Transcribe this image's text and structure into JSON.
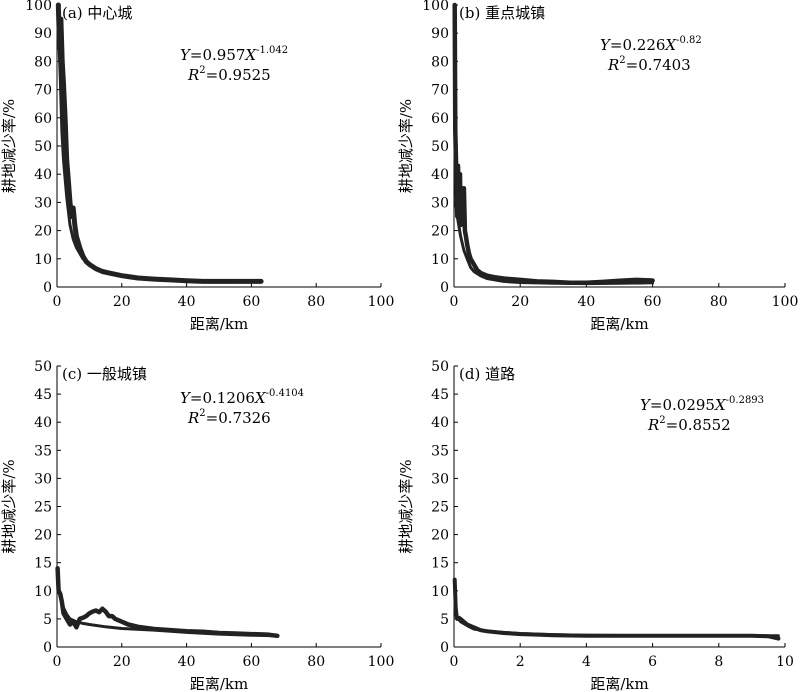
{
  "chart_data": [
    {
      "type": "line",
      "title": "(a) 中心城",
      "xlabel": "距离/km",
      "ylabel": "耕地减少率/%",
      "xlim": [
        0,
        100
      ],
      "ylim": [
        0,
        100
      ],
      "xticks": [
        "0",
        "20",
        "40",
        "60",
        "80",
        "100"
      ],
      "yticks": [
        "0",
        "10",
        "20",
        "30",
        "40",
        "50",
        "60",
        "70",
        "80",
        "90",
        "100"
      ],
      "equation": {
        "main": "Y=0.957X",
        "exp": "-1.042",
        "r2": "=0.9525"
      },
      "series": [
        {
          "x": [
            0.4,
            0.8,
            1.2,
            1.6,
            2,
            2.5,
            3,
            3.5,
            4,
            4.5,
            5,
            5.5,
            6,
            7,
            8,
            9,
            10,
            12,
            14,
            16,
            18,
            20,
            25,
            30,
            35,
            40,
            45,
            50,
            55,
            60,
            63
          ],
          "y": [
            100,
            85,
            95,
            80,
            72,
            60,
            45,
            38,
            30,
            25,
            28,
            22,
            18,
            14,
            11,
            9,
            8,
            6.5,
            5.5,
            5,
            4.5,
            4,
            3.2,
            2.8,
            2.5,
            2.2,
            2,
            2,
            2,
            2,
            2
          ]
        },
        {
          "x": [
            0.5,
            1,
            1.5,
            2,
            3,
            4,
            5,
            6,
            8,
            10,
            12,
            15,
            20,
            25,
            30,
            40,
            50,
            60,
            63
          ],
          "y": [
            90,
            75,
            55,
            45,
            32,
            22,
            17,
            14,
            10,
            8,
            6.5,
            5,
            3.8,
            3,
            2.6,
            2.2,
            2,
            1.9,
            1.9
          ]
        }
      ]
    },
    {
      "type": "line",
      "title": "(b) 重点城镇",
      "xlabel": "距离/km",
      "ylabel": "耕地减少率/%",
      "xlim": [
        0,
        100
      ],
      "ylim": [
        0,
        100
      ],
      "xticks": [
        "0",
        "20",
        "40",
        "60",
        "80",
        "100"
      ],
      "yticks": [
        "0",
        "10",
        "20",
        "30",
        "40",
        "50",
        "60",
        "70",
        "80",
        "90",
        "100"
      ],
      "equation": {
        "main": "Y=0.226X",
        "exp": "-0.82",
        "r2": "=0.7403"
      },
      "series": [
        {
          "x": [
            0.2,
            0.4,
            0.6,
            0.8,
            1,
            1.2,
            1.5,
            1.8,
            2,
            2.3,
            2.6,
            3,
            3.3,
            3.6,
            4,
            4.5,
            5,
            6,
            7,
            8,
            10,
            12,
            15,
            20,
            25,
            30,
            35,
            40,
            45,
            50,
            55,
            60
          ],
          "y": [
            100,
            55,
            45,
            35,
            25,
            43,
            30,
            40,
            22,
            35,
            28,
            35,
            20,
            18,
            15,
            12,
            10,
            8,
            6,
            5,
            4,
            3.5,
            3,
            2.5,
            2,
            1.8,
            1.5,
            1.5,
            1.8,
            2.2,
            2.5,
            2.3
          ]
        },
        {
          "x": [
            0.5,
            1,
            2,
            3,
            4,
            5,
            6,
            8,
            10,
            15,
            20,
            30,
            40,
            50,
            60
          ],
          "y": [
            30,
            25,
            18,
            13,
            10,
            7,
            5.5,
            4,
            3,
            2,
            1.6,
            1.3,
            1.2,
            1.3,
            1.5
          ]
        }
      ]
    },
    {
      "type": "line",
      "title": "(c) 一般城镇",
      "xlabel": "距离/km",
      "ylabel": "耕地减少率/%",
      "xlim": [
        0,
        100
      ],
      "ylim": [
        0,
        50
      ],
      "xticks": [
        "0",
        "20",
        "40",
        "60",
        "80",
        "100"
      ],
      "yticks": [
        "0",
        "5",
        "10",
        "15",
        "20",
        "25",
        "30",
        "35",
        "40",
        "45",
        "50"
      ],
      "equation": {
        "main": "Y=0.1206X",
        "exp": "-0.4104",
        "r2": "=0.7326"
      },
      "series": [
        {
          "x": [
            0.2,
            0.5,
            1,
            1.5,
            2,
            3,
            4,
            5,
            6,
            7,
            8,
            9,
            10,
            11,
            12,
            13,
            14,
            15,
            16,
            17,
            18,
            20,
            22,
            25,
            30,
            35,
            40,
            45,
            50,
            55,
            60,
            65,
            68
          ],
          "y": [
            14,
            10,
            9.5,
            8,
            6,
            5,
            4,
            4.5,
            3.5,
            5,
            5.2,
            5.5,
            6,
            6.3,
            6.5,
            6.2,
            6.8,
            6.3,
            5.5,
            5.5,
            5,
            4.5,
            4,
            3.6,
            3.2,
            3,
            2.8,
            2.7,
            2.5,
            2.4,
            2.3,
            2.2,
            2
          ]
        },
        {
          "x": [
            0.5,
            1,
            2,
            3,
            4,
            6,
            8,
            10,
            15,
            20,
            30,
            40,
            50,
            60,
            68
          ],
          "y": [
            10,
            9,
            7,
            5.8,
            5,
            4.5,
            4.2,
            4,
            3.6,
            3.3,
            3,
            2.6,
            2.3,
            2.1,
            2
          ]
        }
      ]
    },
    {
      "type": "line",
      "title": "(d) 道路",
      "xlabel": "距离/km",
      "ylabel": "耕地减少率/%",
      "xlim": [
        0,
        10
      ],
      "ylim": [
        0,
        50
      ],
      "xticks": [
        "0",
        "2",
        "4",
        "6",
        "8",
        "10"
      ],
      "yticks": [
        "0",
        "5",
        "10",
        "15",
        "20",
        "25",
        "30",
        "35",
        "40",
        "45",
        "50"
      ],
      "equation": {
        "main": "Y=0.0295X",
        "exp": "-0.2893",
        "r2": "=0.8552"
      },
      "series": [
        {
          "x": [
            0.02,
            0.05,
            0.08,
            0.1,
            0.15,
            0.2,
            0.3,
            0.4,
            0.6,
            0.8,
            1,
            1.5,
            2,
            2.5,
            3,
            4,
            5,
            6,
            7,
            8,
            9,
            9.5,
            9.8
          ],
          "y": [
            12,
            7,
            5.5,
            5,
            5.2,
            5,
            4.5,
            4,
            3.5,
            3,
            2.8,
            2.5,
            2.3,
            2.2,
            2.1,
            2,
            2,
            2,
            2,
            2,
            2,
            1.9,
            1.5
          ]
        },
        {
          "x": [
            0.05,
            0.1,
            0.2,
            0.4,
            0.6,
            1,
            2,
            3,
            4,
            6,
            8,
            9.8
          ],
          "y": [
            6,
            5.2,
            4.5,
            3.8,
            3.2,
            2.8,
            2.4,
            2.2,
            2.1,
            2,
            2,
            2
          ]
        }
      ]
    }
  ]
}
